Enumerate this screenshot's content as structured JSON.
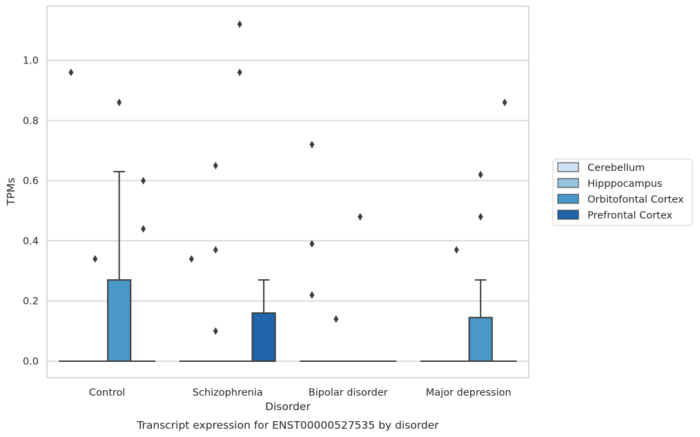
{
  "chart_data": {
    "type": "box",
    "xlabel": "Disorder",
    "ylabel": "TPMs",
    "caption": "Transcript expression for ENST00000527535 by disorder",
    "ylim": [
      -0.055,
      1.18
    ],
    "yticks": [
      0.0,
      0.2,
      0.4,
      0.6,
      0.8,
      1.0
    ],
    "ytick_labels": [
      "0.0",
      "0.2",
      "0.4",
      "0.6",
      "0.8",
      "1.0"
    ],
    "grid": "horizontal",
    "legend_position": "right",
    "categories": [
      "Control",
      "Schizophrenia",
      "Bipolar disorder",
      "Major depression"
    ],
    "series": [
      {
        "name": "Cerebellum",
        "color": "#d0e1f2",
        "boxes": [
          {
            "q1": 0,
            "median": 0,
            "q3": 0,
            "whisker_low": 0,
            "whisker_high": 0,
            "outliers": [
              0.96
            ]
          },
          {
            "q1": 0,
            "median": 0,
            "q3": 0,
            "whisker_low": 0,
            "whisker_high": 0,
            "outliers": [
              0.34
            ]
          },
          {
            "q1": 0,
            "median": 0,
            "q3": 0,
            "whisker_low": 0,
            "whisker_high": 0,
            "outliers": [
              0.72,
              0.39,
              0.22
            ]
          },
          {
            "q1": 0,
            "median": 0,
            "q3": 0,
            "whisker_low": 0,
            "whisker_high": 0,
            "outliers": []
          }
        ]
      },
      {
        "name": "Hipppocampus",
        "color": "#94c4df",
        "boxes": [
          {
            "q1": 0,
            "median": 0,
            "q3": 0,
            "whisker_low": 0,
            "whisker_high": 0,
            "outliers": [
              0.34
            ]
          },
          {
            "q1": 0,
            "median": 0,
            "q3": 0,
            "whisker_low": 0,
            "whisker_high": 0,
            "outliers": [
              0.65,
              0.37,
              0.1
            ]
          },
          {
            "q1": 0,
            "median": 0,
            "q3": 0,
            "whisker_low": 0,
            "whisker_high": 0,
            "outliers": [
              0.14
            ]
          },
          {
            "q1": 0,
            "median": 0,
            "q3": 0,
            "whisker_low": 0,
            "whisker_high": 0,
            "outliers": [
              0.37
            ]
          }
        ]
      },
      {
        "name": "Orbitofontal Cortex",
        "color": "#4a98c9",
        "boxes": [
          {
            "q1": 0,
            "median": 0,
            "q3": 0.27,
            "whisker_low": 0,
            "whisker_high": 0.63,
            "outliers": [
              0.86
            ]
          },
          {
            "q1": 0,
            "median": 0,
            "q3": 0,
            "whisker_low": 0,
            "whisker_high": 0,
            "outliers": [
              1.12,
              0.96
            ]
          },
          {
            "q1": 0,
            "median": 0,
            "q3": 0,
            "whisker_low": 0,
            "whisker_high": 0,
            "outliers": [
              0.48
            ]
          },
          {
            "q1": 0,
            "median": 0,
            "q3": 0.145,
            "whisker_low": 0,
            "whisker_high": 0.27,
            "outliers": [
              0.62,
              0.48
            ]
          }
        ]
      },
      {
        "name": "Prefrontal Cortex",
        "color": "#2164aa",
        "boxes": [
          {
            "q1": 0,
            "median": 0,
            "q3": 0,
            "whisker_low": 0,
            "whisker_high": 0,
            "outliers": [
              0.6,
              0.44
            ]
          },
          {
            "q1": 0,
            "median": 0,
            "q3": 0.16,
            "whisker_low": 0,
            "whisker_high": 0.27,
            "outliers": []
          },
          {
            "q1": 0,
            "median": 0,
            "q3": 0,
            "whisker_low": 0,
            "whisker_high": 0,
            "outliers": []
          },
          {
            "q1": 0,
            "median": 0,
            "q3": 0,
            "whisker_low": 0,
            "whisker_high": 0,
            "outliers": [
              0.86
            ]
          }
        ]
      }
    ]
  }
}
